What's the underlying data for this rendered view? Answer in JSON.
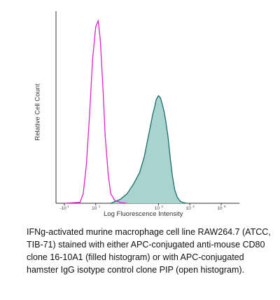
{
  "chart_data": {
    "type": "area",
    "xlabel": "Log Fluorescence Intensity",
    "ylabel": "Relative Cell Count",
    "x_scale": "log",
    "xlim": [
      -10,
      100000
    ],
    "ylim": [
      0,
      1.0
    ],
    "tick_labels": [
      {
        "value": -10,
        "base": "-10",
        "exp": "1"
      },
      {
        "value": 10,
        "base": "10",
        "exp": "1"
      },
      {
        "value": 1000,
        "base": "10",
        "exp": "3"
      },
      {
        "value": 10000,
        "base": "10",
        "exp": "4"
      },
      {
        "value": 100000,
        "base": "10",
        "exp": "5"
      }
    ],
    "series": [
      {
        "style": "filled",
        "color": "#1a6e6a",
        "fill": "#a9d3cf",
        "x": [
          30,
          60,
          100,
          160,
          250,
          350,
          450,
          550,
          650,
          750,
          850,
          1000,
          1150,
          1300,
          1500,
          1700,
          2000,
          2400,
          2800,
          3300,
          4000,
          5000,
          6000,
          8000
        ],
        "y": [
          0.0,
          0.02,
          0.05,
          0.1,
          0.16,
          0.24,
          0.33,
          0.4,
          0.46,
          0.5,
          0.54,
          0.56,
          0.55,
          0.52,
          0.48,
          0.43,
          0.35,
          0.23,
          0.14,
          0.07,
          0.03,
          0.01,
          0.004,
          0.0
        ]
      },
      {
        "style": "open",
        "color": "#e020c8",
        "x": [
          -10,
          0,
          2,
          4,
          6,
          8,
          10,
          12,
          14,
          17,
          20,
          25,
          30,
          40,
          60,
          100
        ],
        "y": [
          0.0,
          0.005,
          0.05,
          0.2,
          0.45,
          0.75,
          0.92,
          0.95,
          0.85,
          0.6,
          0.35,
          0.15,
          0.05,
          0.015,
          0.004,
          0.0
        ]
      }
    ]
  },
  "caption": {
    "lines": [
      "IFNg-activated murine macrophage cell line RAW264.7 (ATCC,",
      "TIB-71) stained with either APC-conjugated anti-mouse CD80",
      "clone 16-10A1 (filled histogram) or with APC-conjugated",
      "hamster IgG isotype control clone PIP (open histogram)."
    ]
  }
}
